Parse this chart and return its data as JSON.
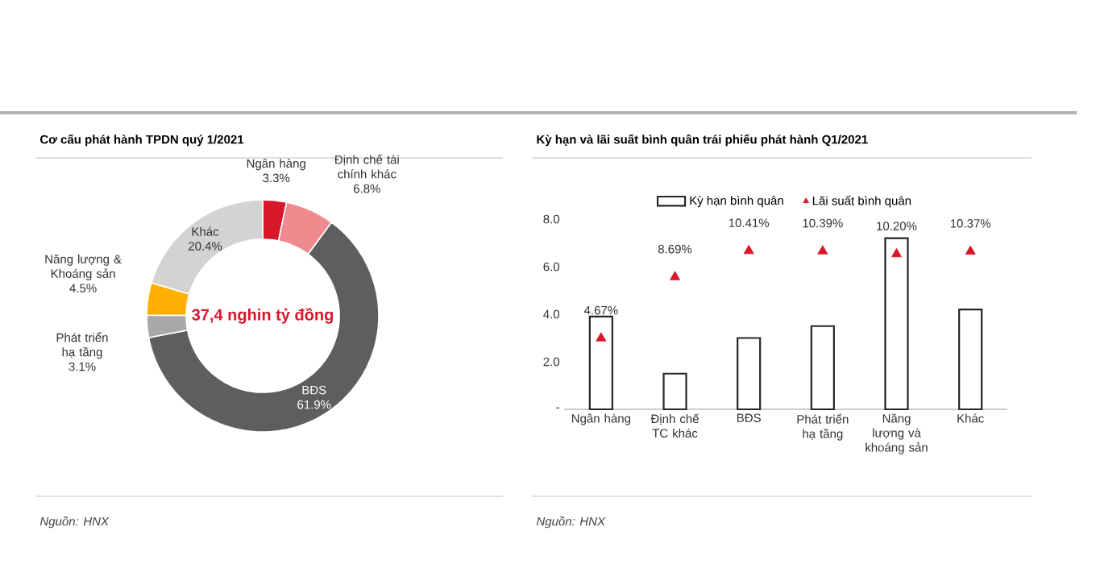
{
  "chart_data": [
    {
      "type": "donut",
      "title": "Cơ cấu phát hành TPDN quý 1/2021",
      "categories": [
        "Ngân hàng",
        "Định chế tài chính khác",
        "BĐS",
        "Phát triển hạ tầng",
        "Năng lượng & Khoáng sản",
        "Khác"
      ],
      "values": [
        3.3,
        6.8,
        61.9,
        3.1,
        4.5,
        20.4
      ],
      "colors": [
        "#d7182a",
        "#f08a8e",
        "#5e5e5e",
        "#a8a8a8",
        "#ffb000",
        "#d3d3d3"
      ],
      "value_labels": [
        "3.3%",
        "6.8%",
        "61.9%",
        "3.1%",
        "4.5%",
        "20.4%"
      ],
      "annotations": [
        "37,4 nghin tỷ đồng",
        "Nguồn: HNX"
      ]
    },
    {
      "type": "bar",
      "title": "Kỳ hạn và lãi suất bình quân trái phiếu phát hành Q1/2021",
      "categories": [
        "Ngân hàng",
        "Định chế TC khác",
        "BĐS",
        "Phát triển hạ tầng",
        "Năng lượng và khoáng sản",
        "Khác"
      ],
      "series": [
        {
          "name": "Kỳ hạn bình quân",
          "type": "bar",
          "color": "#ffffff",
          "values": [
            3.9,
            1.5,
            3.0,
            3.5,
            7.2,
            4.2
          ]
        },
        {
          "name": "Lãi suất bình quân",
          "type": "scatter",
          "axis": "y2",
          "marker": "triangle",
          "color": "#d7182a",
          "values": [
            4.67,
            8.69,
            10.41,
            10.39,
            10.2,
            10.37
          ],
          "value_labels": [
            "4.67%",
            "8.69%",
            "10.41%",
            "10.39%",
            "10.20%",
            "10.37%"
          ]
        }
      ],
      "ylim": [
        0,
        8
      ],
      "yticks": [
        {
          "value": 0,
          "label": "-"
        },
        {
          "value": 2,
          "label": "2.0"
        },
        {
          "value": 4,
          "label": "4.0"
        },
        {
          "value": 6,
          "label": "6.0"
        },
        {
          "value": 8,
          "label": "8.0"
        }
      ],
      "legend": "top",
      "annotations": [
        "Nguồn: HNX"
      ]
    }
  ]
}
